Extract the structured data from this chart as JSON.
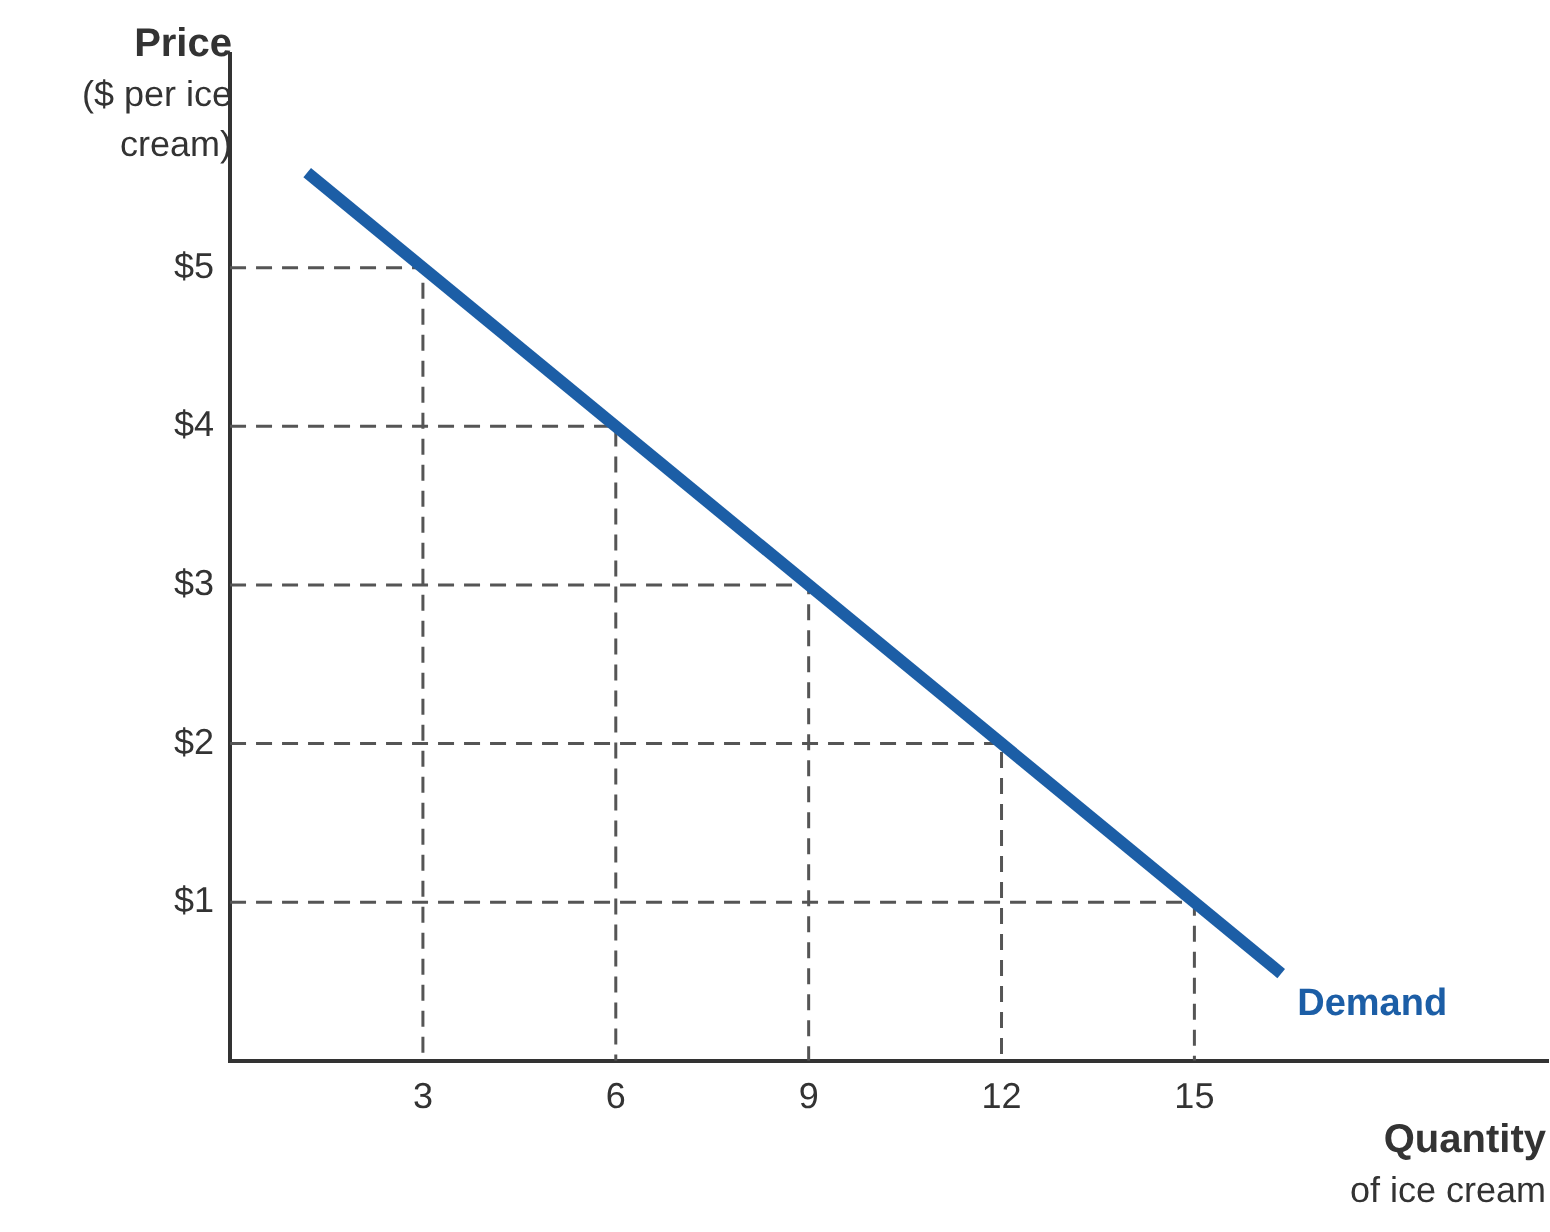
{
  "chart_data": {
    "type": "line",
    "xlabel": "Quantity\nof ice cream",
    "ylabel": "Price\n($ per ice\ncream)",
    "xlim": [
      0,
      20.5
    ],
    "ylim": [
      0,
      6.35
    ],
    "xticks": [
      3,
      6,
      9,
      12,
      15
    ],
    "yticks": [
      {
        "value": 1,
        "label": "$1"
      },
      {
        "value": 2,
        "label": "$2"
      },
      {
        "value": 3,
        "label": "$3"
      },
      {
        "value": 4,
        "label": "$4"
      },
      {
        "value": 5,
        "label": "$5"
      }
    ],
    "legend": false,
    "marker": "none",
    "grid": false,
    "series": [
      {
        "name": "Demand",
        "color": "#1c5ea6",
        "line_style": "solid",
        "x": [
          1.2,
          16.35
        ],
        "values": [
          5.6,
          0.55
        ]
      },
      {
        "color": "#555555",
        "line_style": "dashed",
        "x": [
          0,
          3,
          3
        ],
        "values": [
          5,
          5,
          0
        ]
      },
      {
        "color": "#555555",
        "line_style": "dashed",
        "x": [
          0,
          6,
          6
        ],
        "values": [
          4,
          4,
          0
        ]
      },
      {
        "color": "#555555",
        "line_style": "dashed",
        "x": [
          0,
          9,
          9
        ],
        "values": [
          3,
          3,
          0
        ]
      },
      {
        "color": "#555555",
        "line_style": "dashed",
        "x": [
          0,
          12,
          12
        ],
        "values": [
          2,
          2,
          0
        ]
      },
      {
        "color": "#555555",
        "line_style": "dashed",
        "x": [
          0,
          15,
          15
        ],
        "values": [
          1,
          1,
          0
        ]
      }
    ]
  }
}
